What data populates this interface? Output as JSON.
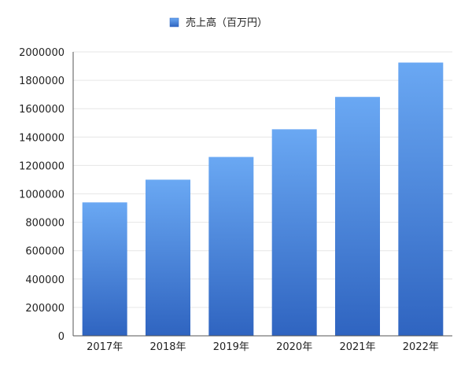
{
  "chart_data": {
    "type": "bar",
    "categories": [
      "2017年",
      "2018年",
      "2019年",
      "2020年",
      "2021年",
      "2022年"
    ],
    "series": [
      {
        "name": "売上高（百万円）",
        "values": [
          940000,
          1100000,
          1260000,
          1455000,
          1683000,
          1925000
        ]
      }
    ],
    "ylim": [
      0,
      2000000
    ],
    "yticks": [
      0,
      200000,
      400000,
      600000,
      800000,
      1000000,
      1200000,
      1400000,
      1600000,
      1800000,
      2000000
    ],
    "legend_position": "top-center",
    "grid": true,
    "colors": {
      "bar_top": "#6aa8f3",
      "bar_bottom": "#2f64c0",
      "grid": "#e6e6e6",
      "axis": "#555555"
    }
  }
}
